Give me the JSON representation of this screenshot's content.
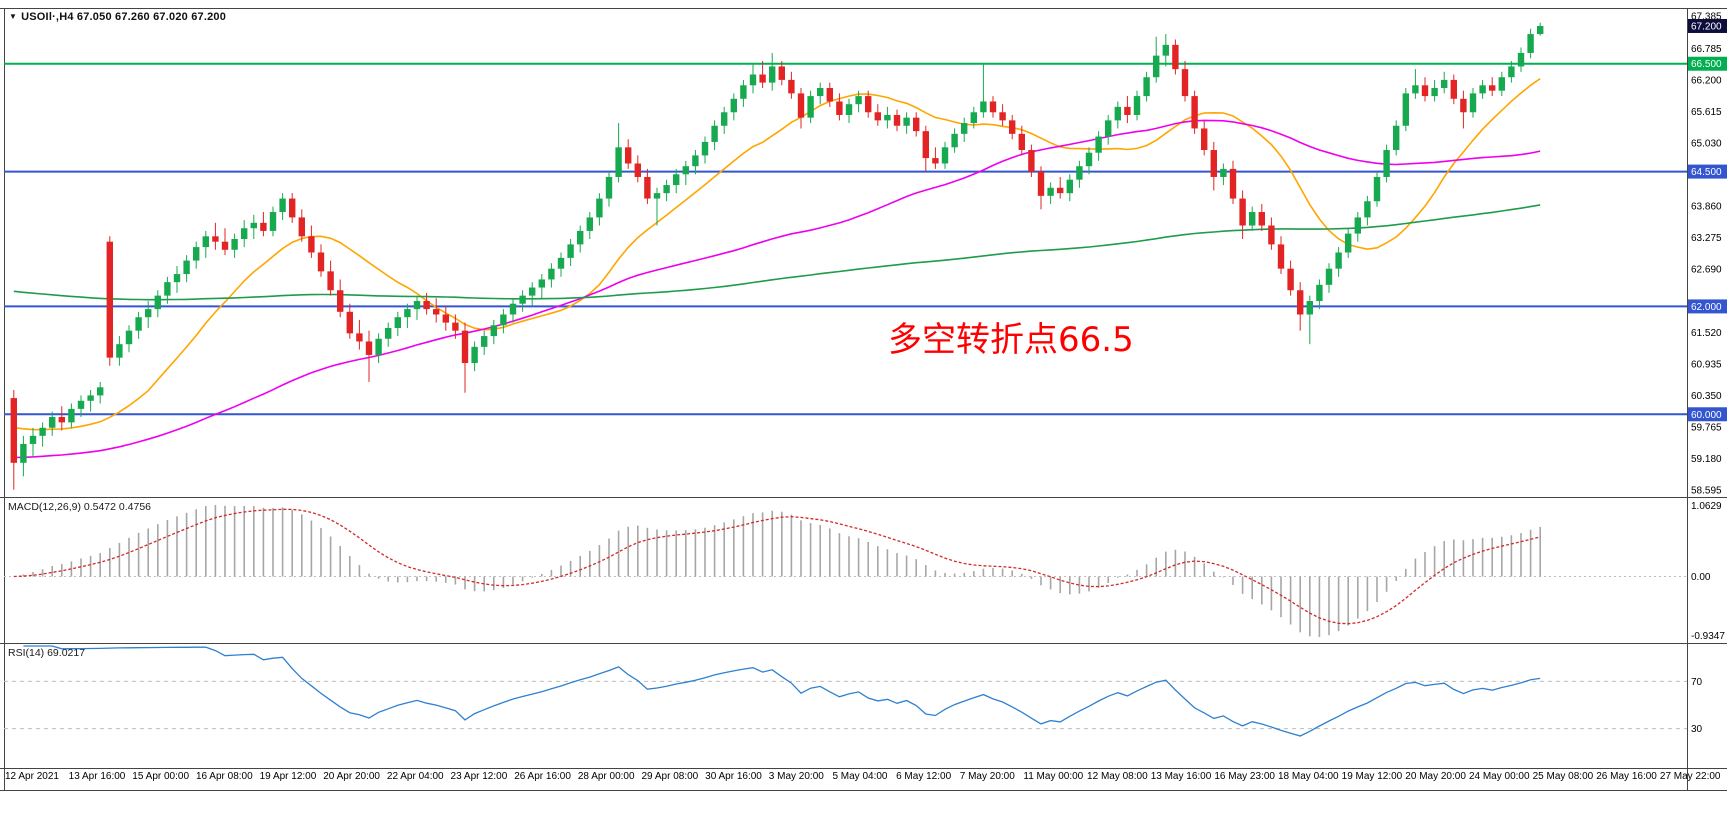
{
  "window": {
    "bg": "#FFFFFF",
    "border_color": "#444444"
  },
  "main": {
    "title_marker": "▼",
    "title": "USOIl·,H4 67.050 67.260 67.020 67.200",
    "annotation": {
      "text": "多空转折点66.5",
      "color": "#FF0000"
    }
  },
  "chart_data": {
    "type": "candlestick",
    "symbol": "USOIl",
    "timeframe": "H4",
    "title": "USOIl·,H4 67.050 67.260 67.020 67.200",
    "ohlc_display": {
      "open": "67.050",
      "high": "67.260",
      "low": "67.020",
      "close": "67.200"
    },
    "current_price": 67.2,
    "y_axis": {
      "ticks": [
        67.385,
        66.785,
        66.2,
        65.615,
        65.03,
        63.86,
        63.275,
        62.69,
        61.52,
        60.935,
        60.35,
        59.765,
        59.18,
        58.595
      ],
      "boxes": [
        {
          "price": 67.2,
          "label": "67.200",
          "bg": "#0E0E3C",
          "fg": "#FFFFFF",
          "kind": "current-price"
        },
        {
          "price": 66.5,
          "label": "66.500",
          "bg": "#00B050",
          "fg": "#FFFFFF",
          "kind": "level"
        },
        {
          "price": 64.5,
          "label": "64.500",
          "bg": "#3355D0",
          "fg": "#FFFFFF",
          "kind": "level"
        },
        {
          "price": 62.0,
          "label": "62.000",
          "bg": "#3355D0",
          "fg": "#FFFFFF",
          "kind": "level"
        },
        {
          "price": 60.0,
          "label": "60.000",
          "bg": "#3355D0",
          "fg": "#FFFFFF",
          "kind": "level"
        }
      ]
    },
    "support_resistance": [
      {
        "price": 66.5,
        "color": "#00B050",
        "width": 2
      },
      {
        "price": 64.5,
        "color": "#3355D0",
        "width": 2
      },
      {
        "price": 62.0,
        "color": "#3355D0",
        "width": 2
      },
      {
        "price": 60.0,
        "color": "#3355D0",
        "width": 2
      }
    ],
    "overlays": [
      {
        "name": "ma-fast",
        "type": "sma",
        "period": 15,
        "prefill": 59.8,
        "color": "#FFA500"
      },
      {
        "name": "ma-mid",
        "type": "sma",
        "period": 55,
        "prefill": 59.2,
        "color": "#EE00EE"
      },
      {
        "name": "ma-slow",
        "type": "sma",
        "period": 160,
        "prefill": 62.3,
        "color": "#1E9C4B"
      }
    ],
    "x_axis": {
      "labels": [
        "12 Apr 2021",
        "13 Apr 16:00",
        "15 Apr 00:00",
        "16 Apr 08:00",
        "19 Apr 12:00",
        "20 Apr 20:00",
        "22 Apr 04:00",
        "23 Apr 12:00",
        "26 Apr 16:00",
        "28 Apr 00:00",
        "29 Apr 08:00",
        "30 Apr 16:00",
        "3 May 20:00",
        "5 May 04:00",
        "6 May 12:00",
        "7 May 20:00",
        "11 May 00:00",
        "12 May 08:00",
        "13 May 16:00",
        "16 May 23:00",
        "18 May 04:00",
        "19 May 12:00",
        "20 May 20:00",
        "24 May 00:00",
        "25 May 08:00",
        "26 May 16:00",
        "27 May 22:00"
      ]
    },
    "indicators": [
      {
        "name": "MACD",
        "label": "MACD(12,26,9) 0.5472 0.4756",
        "params": [
          12,
          26,
          9
        ],
        "values": [
          0.5472,
          0.4756
        ],
        "axis_labels": [
          "1.0629",
          "0.00",
          "-0.9347"
        ],
        "hist_color": "#A6A6A6",
        "signal_color": "#D02A2A",
        "zero_line_color": "#BDBDBD"
      },
      {
        "name": "RSI",
        "label": "RSI(14) 69.0217",
        "period": 14,
        "value": 69.0217,
        "levels": [
          70,
          30
        ],
        "level_labels": [
          "70",
          "30"
        ],
        "color": "#2F80D0",
        "level_color": "#BDBDBD"
      }
    ],
    "style": {
      "up_color": "#17A94F",
      "down_color": "#E32424",
      "axis_text": "#000000"
    },
    "candles": [
      [
        60.3,
        60.45,
        58.6,
        59.1
      ],
      [
        59.1,
        59.6,
        58.85,
        59.45
      ],
      [
        59.45,
        59.75,
        59.2,
        59.6
      ],
      [
        59.6,
        59.85,
        59.4,
        59.75
      ],
      [
        59.75,
        60.05,
        59.6,
        59.95
      ],
      [
        59.95,
        60.15,
        59.7,
        59.85
      ],
      [
        59.85,
        60.2,
        59.75,
        60.1
      ],
      [
        60.1,
        60.35,
        59.95,
        60.25
      ],
      [
        60.25,
        60.45,
        60.05,
        60.35
      ],
      [
        60.35,
        60.6,
        60.2,
        60.5
      ],
      [
        63.2,
        63.3,
        60.9,
        61.05
      ],
      [
        61.05,
        61.45,
        60.9,
        61.3
      ],
      [
        61.3,
        61.65,
        61.15,
        61.55
      ],
      [
        61.55,
        61.9,
        61.4,
        61.8
      ],
      [
        61.8,
        62.1,
        61.6,
        61.95
      ],
      [
        61.95,
        62.3,
        61.8,
        62.2
      ],
      [
        62.2,
        62.55,
        62.05,
        62.45
      ],
      [
        62.45,
        62.75,
        62.25,
        62.6
      ],
      [
        62.6,
        62.95,
        62.45,
        62.85
      ],
      [
        62.85,
        63.2,
        62.7,
        63.1
      ],
      [
        63.1,
        63.4,
        62.9,
        63.3
      ],
      [
        63.3,
        63.55,
        63.05,
        63.2
      ],
      [
        63.2,
        63.45,
        62.95,
        63.05
      ],
      [
        63.05,
        63.35,
        62.9,
        63.25
      ],
      [
        63.25,
        63.6,
        63.1,
        63.45
      ],
      [
        63.45,
        63.7,
        63.25,
        63.55
      ],
      [
        63.55,
        63.75,
        63.3,
        63.4
      ],
      [
        63.4,
        63.85,
        63.3,
        63.75
      ],
      [
        63.75,
        64.1,
        63.6,
        64.0
      ],
      [
        64.0,
        64.1,
        63.55,
        63.65
      ],
      [
        63.65,
        63.8,
        63.2,
        63.3
      ],
      [
        63.3,
        63.5,
        62.9,
        63.0
      ],
      [
        63.0,
        63.15,
        62.55,
        62.65
      ],
      [
        62.65,
        62.85,
        62.2,
        62.3
      ],
      [
        62.3,
        62.5,
        61.8,
        61.9
      ],
      [
        61.9,
        62.05,
        61.4,
        61.5
      ],
      [
        61.5,
        61.75,
        61.2,
        61.35
      ],
      [
        61.35,
        61.55,
        60.6,
        61.1
      ],
      [
        61.1,
        61.5,
        60.95,
        61.4
      ],
      [
        61.4,
        61.7,
        61.25,
        61.6
      ],
      [
        61.6,
        61.9,
        61.45,
        61.8
      ],
      [
        61.8,
        62.05,
        61.6,
        61.95
      ],
      [
        61.95,
        62.2,
        61.75,
        62.1
      ],
      [
        62.1,
        62.25,
        61.85,
        61.95
      ],
      [
        61.95,
        62.15,
        61.7,
        61.85
      ],
      [
        61.85,
        62.0,
        61.55,
        61.7
      ],
      [
        61.7,
        61.85,
        61.4,
        61.55
      ],
      [
        61.55,
        61.7,
        60.4,
        60.95
      ],
      [
        60.95,
        61.35,
        60.8,
        61.25
      ],
      [
        61.25,
        61.55,
        61.1,
        61.45
      ],
      [
        61.45,
        61.75,
        61.3,
        61.65
      ],
      [
        61.65,
        61.95,
        61.5,
        61.85
      ],
      [
        61.85,
        62.15,
        61.7,
        62.05
      ],
      [
        62.05,
        62.3,
        61.9,
        62.2
      ],
      [
        62.2,
        62.45,
        62.0,
        62.35
      ],
      [
        62.35,
        62.6,
        62.15,
        62.5
      ],
      [
        62.5,
        62.8,
        62.35,
        62.7
      ],
      [
        62.7,
        63.0,
        62.55,
        62.9
      ],
      [
        62.9,
        63.25,
        62.75,
        63.15
      ],
      [
        63.15,
        63.5,
        63.0,
        63.4
      ],
      [
        63.4,
        63.75,
        63.25,
        63.65
      ],
      [
        63.65,
        64.1,
        63.5,
        64.0
      ],
      [
        64.0,
        64.5,
        63.85,
        64.4
      ],
      [
        64.4,
        65.4,
        64.3,
        64.95
      ],
      [
        64.95,
        65.1,
        64.55,
        64.65
      ],
      [
        64.65,
        64.8,
        64.3,
        64.4
      ],
      [
        64.4,
        64.55,
        63.9,
        64.0
      ],
      [
        64.0,
        64.2,
        63.5,
        64.1
      ],
      [
        64.1,
        64.35,
        63.95,
        64.25
      ],
      [
        64.25,
        64.55,
        64.1,
        64.45
      ],
      [
        64.45,
        64.7,
        64.25,
        64.6
      ],
      [
        64.6,
        64.9,
        64.45,
        64.8
      ],
      [
        64.8,
        65.15,
        64.65,
        65.05
      ],
      [
        65.05,
        65.45,
        64.9,
        65.35
      ],
      [
        65.35,
        65.7,
        65.2,
        65.6
      ],
      [
        65.6,
        65.95,
        65.45,
        65.85
      ],
      [
        65.85,
        66.2,
        65.7,
        66.1
      ],
      [
        66.1,
        66.5,
        65.95,
        66.3
      ],
      [
        66.3,
        66.55,
        66.05,
        66.15
      ],
      [
        66.15,
        66.7,
        66.0,
        66.45
      ],
      [
        66.45,
        66.55,
        66.1,
        66.2
      ],
      [
        66.2,
        66.35,
        65.85,
        65.95
      ],
      [
        65.95,
        66.05,
        65.3,
        65.5
      ],
      [
        65.5,
        66.0,
        65.4,
        65.9
      ],
      [
        65.9,
        66.15,
        65.75,
        66.05
      ],
      [
        66.05,
        66.15,
        65.7,
        65.8
      ],
      [
        65.8,
        65.95,
        65.45,
        65.55
      ],
      [
        65.55,
        65.85,
        65.4,
        65.75
      ],
      [
        65.75,
        66.0,
        65.6,
        65.9
      ],
      [
        65.9,
        66.0,
        65.5,
        65.6
      ],
      [
        65.6,
        65.75,
        65.35,
        65.45
      ],
      [
        65.45,
        65.7,
        65.3,
        65.55
      ],
      [
        65.55,
        65.65,
        65.25,
        65.35
      ],
      [
        65.35,
        65.6,
        65.2,
        65.5
      ],
      [
        65.5,
        65.6,
        65.15,
        65.25
      ],
      [
        65.25,
        65.35,
        64.5,
        64.75
      ],
      [
        64.75,
        64.95,
        64.55,
        64.65
      ],
      [
        64.65,
        65.05,
        64.55,
        64.95
      ],
      [
        64.95,
        65.3,
        64.85,
        65.2
      ],
      [
        65.2,
        65.5,
        65.05,
        65.4
      ],
      [
        65.4,
        65.7,
        65.3,
        65.6
      ],
      [
        65.6,
        66.5,
        65.5,
        65.8
      ],
      [
        65.8,
        65.9,
        65.5,
        65.6
      ],
      [
        65.6,
        65.75,
        65.35,
        65.45
      ],
      [
        65.45,
        65.55,
        65.1,
        65.2
      ],
      [
        65.2,
        65.35,
        64.8,
        64.9
      ],
      [
        64.9,
        65.0,
        64.4,
        64.5
      ],
      [
        64.5,
        64.6,
        63.8,
        64.05
      ],
      [
        64.05,
        64.3,
        63.9,
        64.2
      ],
      [
        64.2,
        64.4,
        64.0,
        64.1
      ],
      [
        64.1,
        64.45,
        63.95,
        64.35
      ],
      [
        64.35,
        64.7,
        64.2,
        64.6
      ],
      [
        64.6,
        64.95,
        64.45,
        64.85
      ],
      [
        64.85,
        65.25,
        64.7,
        65.15
      ],
      [
        65.15,
        65.55,
        65.0,
        65.45
      ],
      [
        65.45,
        65.8,
        65.3,
        65.7
      ],
      [
        65.7,
        65.9,
        65.4,
        65.55
      ],
      [
        65.55,
        66.0,
        65.45,
        65.9
      ],
      [
        65.9,
        66.35,
        65.8,
        66.25
      ],
      [
        66.25,
        67.0,
        66.15,
        66.65
      ],
      [
        66.65,
        67.05,
        66.45,
        66.85
      ],
      [
        66.85,
        66.95,
        66.3,
        66.4
      ],
      [
        66.4,
        66.55,
        65.8,
        65.9
      ],
      [
        65.9,
        66.0,
        65.2,
        65.3
      ],
      [
        65.3,
        65.45,
        64.8,
        64.9
      ],
      [
        64.9,
        65.05,
        64.15,
        64.4
      ],
      [
        64.4,
        64.65,
        64.25,
        64.55
      ],
      [
        64.55,
        64.7,
        63.9,
        64.0
      ],
      [
        64.0,
        64.15,
        63.25,
        63.5
      ],
      [
        63.5,
        63.85,
        63.4,
        63.75
      ],
      [
        63.75,
        63.9,
        63.4,
        63.5
      ],
      [
        63.5,
        63.65,
        63.05,
        63.15
      ],
      [
        63.15,
        63.3,
        62.6,
        62.7
      ],
      [
        62.7,
        62.85,
        62.2,
        62.3
      ],
      [
        62.3,
        62.45,
        61.55,
        61.85
      ],
      [
        61.85,
        62.2,
        61.3,
        62.1
      ],
      [
        62.1,
        62.5,
        61.95,
        62.4
      ],
      [
        62.4,
        62.8,
        62.25,
        62.7
      ],
      [
        62.7,
        63.1,
        62.55,
        63.0
      ],
      [
        63.0,
        63.45,
        62.9,
        63.35
      ],
      [
        63.35,
        63.75,
        63.2,
        63.65
      ],
      [
        63.65,
        64.05,
        63.5,
        63.95
      ],
      [
        63.95,
        64.5,
        63.85,
        64.4
      ],
      [
        64.4,
        65.0,
        64.3,
        64.9
      ],
      [
        64.9,
        65.45,
        64.8,
        65.35
      ],
      [
        65.35,
        66.05,
        65.25,
        65.95
      ],
      [
        65.95,
        66.4,
        65.85,
        66.1
      ],
      [
        66.1,
        66.25,
        65.8,
        65.9
      ],
      [
        65.9,
        66.2,
        65.8,
        66.05
      ],
      [
        66.05,
        66.35,
        65.95,
        66.2
      ],
      [
        66.2,
        66.3,
        65.75,
        65.85
      ],
      [
        65.85,
        66.0,
        65.3,
        65.6
      ],
      [
        65.6,
        66.05,
        65.5,
        65.95
      ],
      [
        65.95,
        66.2,
        65.85,
        66.1
      ],
      [
        66.1,
        66.25,
        65.9,
        66.0
      ],
      [
        66.0,
        66.35,
        65.9,
        66.25
      ],
      [
        66.25,
        66.55,
        66.15,
        66.45
      ],
      [
        66.45,
        66.8,
        66.35,
        66.7
      ],
      [
        66.7,
        67.15,
        66.6,
        67.05
      ],
      [
        67.05,
        67.26,
        67.02,
        67.2
      ]
    ]
  }
}
